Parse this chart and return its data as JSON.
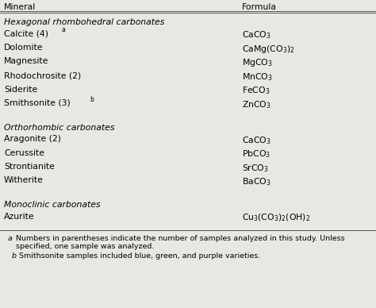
{
  "title_mineral": "Mineral",
  "title_formula": "Formula",
  "bg_color": "#e8e8e3",
  "sections": [
    {
      "header": "Hexagonal rhombohedral carbonates",
      "rows": [
        {
          "mineral": "Calcite (4)",
          "superscript": "a",
          "formula": "$\\mathrm{CaCO_3}$"
        },
        {
          "mineral": "Dolomite",
          "superscript": "",
          "formula": "$\\mathrm{CaMg(CO_3)_2}$"
        },
        {
          "mineral": "Magnesite",
          "superscript": "",
          "formula": "$\\mathrm{MgCO_3}$"
        },
        {
          "mineral": "Rhodochrosite (2)",
          "superscript": "",
          "formula": "$\\mathrm{MnCO_3}$"
        },
        {
          "mineral": "Siderite",
          "superscript": "",
          "formula": "$\\mathrm{FeCO_3}$"
        },
        {
          "mineral": "Smithsonite (3)",
          "superscript": "b",
          "formula": "$\\mathrm{ZnCO_3}$"
        }
      ]
    },
    {
      "header": "Orthorhombic carbonates",
      "rows": [
        {
          "mineral": "Aragonite (2)",
          "superscript": "",
          "formula": "$\\mathrm{CaCO_3}$"
        },
        {
          "mineral": "Cerussite",
          "superscript": "",
          "formula": "$\\mathrm{PbCO_3}$"
        },
        {
          "mineral": "Strontianite",
          "superscript": "",
          "formula": "$\\mathrm{SrCO_3}$"
        },
        {
          "mineral": "Witherite",
          "superscript": "",
          "formula": "$\\mathrm{BaCO_3}$"
        }
      ]
    },
    {
      "header": "Monoclinic carbonates",
      "rows": [
        {
          "mineral": "Azurite",
          "superscript": "",
          "formula": "$\\mathrm{Cu_3(CO_3)_2(OH)_2}$"
        }
      ]
    }
  ],
  "footnote_a": "Numbers in parentheses indicate the number of samples analyzed in this study. Unless specified, one sample was analyzed.",
  "footnote_b": "Smithsonite samples included blue, green, and purple varieties.",
  "font_size": 7.8,
  "footnote_font_size": 6.8
}
